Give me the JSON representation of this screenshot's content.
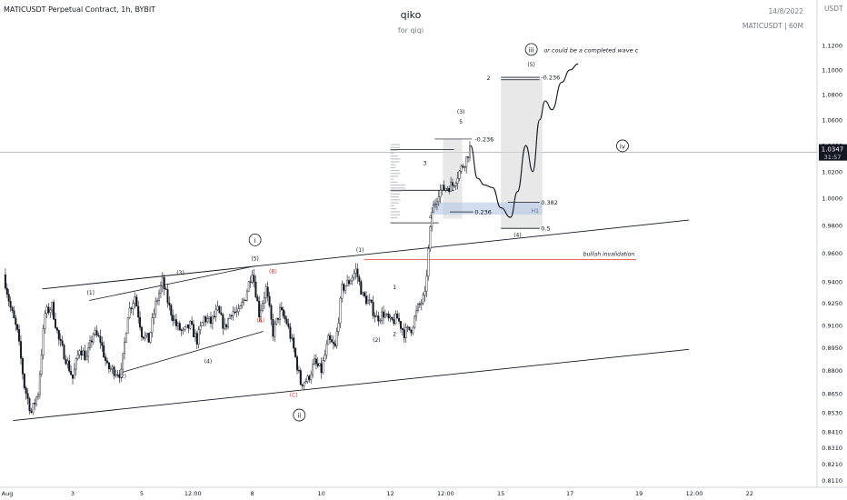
{
  "header": {
    "symbol_title": "MATICUSDT Perpetual Contract, 1h, BYBIT",
    "author": "qiko",
    "subtitle": "for qiqi",
    "date": "14/8/2022",
    "symbol_interval": "MATICUSDT | 60M",
    "currency": "USDT"
  },
  "price_tag": {
    "price": "1.0347",
    "countdown": "31:57"
  },
  "chart_data": {
    "type": "line",
    "title": "",
    "ylabel": "USDT",
    "ylim": [
      0.807,
      1.14
    ],
    "y_scale": "log",
    "grid": false,
    "y_ticks": [
      "1.1200",
      "1.1000",
      "1.0800",
      "1.0600",
      "1.0400",
      "1.0200",
      "1.0000",
      "0.9800",
      "0.9600",
      "0.9400",
      "0.9250",
      "0.9100",
      "0.8950",
      "0.8800",
      "0.8650",
      "0.8530",
      "0.8410",
      "0.8310",
      "0.8210",
      "0.8110"
    ],
    "y_tick_values": [
      1.12,
      1.1,
      1.08,
      1.06,
      1.04,
      1.02,
      1.0,
      0.98,
      0.96,
      0.94,
      0.925,
      0.91,
      0.895,
      0.88,
      0.865,
      0.853,
      0.841,
      0.831,
      0.821,
      0.811
    ],
    "x_ticks": [
      "Aug",
      "3",
      "5",
      "12:00",
      "8",
      "10",
      "12",
      "12:00",
      "15",
      "17",
      "19",
      "12:00",
      "22"
    ],
    "x_tick_index": [
      0,
      5,
      10,
      13.7,
      18,
      23,
      28,
      32,
      36,
      41,
      46,
      50,
      54
    ],
    "series": [
      {
        "x": [
          0,
          0.5,
          1,
          1.5,
          2,
          2.5,
          3,
          3.5,
          4,
          4.5,
          5,
          5.5,
          6,
          6.5,
          7,
          7.5,
          8,
          8.5,
          9,
          9.5,
          10,
          10.5,
          11,
          11.5,
          12,
          12.5,
          13,
          13.5,
          14,
          14.5,
          15,
          15.5,
          16,
          16.5,
          17,
          17.5,
          18,
          18.5,
          19,
          19.5,
          20,
          20.5,
          21,
          21.5,
          22,
          22.5,
          23,
          23.5,
          24,
          24.5,
          25,
          25.5,
          26,
          26.5,
          27,
          27.5,
          28,
          28.5,
          29,
          29.5,
          30,
          30.5,
          30.8,
          31,
          31.5,
          32,
          32.5,
          33,
          33.5,
          33.8
        ],
        "values": [
          0.945,
          0.922,
          0.905,
          0.87,
          0.853,
          0.866,
          0.918,
          0.923,
          0.9,
          0.888,
          0.875,
          0.895,
          0.888,
          0.905,
          0.9,
          0.882,
          0.88,
          0.878,
          0.918,
          0.93,
          0.905,
          0.9,
          0.924,
          0.94,
          0.922,
          0.91,
          0.905,
          0.91,
          0.9,
          0.915,
          0.912,
          0.92,
          0.908,
          0.92,
          0.918,
          0.93,
          0.948,
          0.918,
          0.935,
          0.905,
          0.92,
          0.912,
          0.894,
          0.872,
          0.874,
          0.885,
          0.88,
          0.9,
          0.895,
          0.935,
          0.94,
          0.948,
          0.93,
          0.925,
          0.915,
          0.918,
          0.912,
          0.915,
          0.905,
          0.908,
          0.922,
          0.93,
          0.968,
          0.99,
          1.005,
          1.008,
          1.01,
          1.02,
          1.03,
          1.04
        ]
      }
    ],
    "projection": {
      "x": [
        33.8,
        34.3,
        34.8,
        35.4,
        36.0,
        36.7,
        37.2,
        37.8,
        38.3,
        38.8,
        39.2,
        39.7,
        40.4,
        41.0,
        41.6
      ],
      "values": [
        1.04,
        1.015,
        1.01,
        1.008,
        0.993,
        0.986,
        1.005,
        1.04,
        1.02,
        1.06,
        1.075,
        1.068,
        1.09,
        1.1,
        1.105
      ]
    },
    "annotations": [
      {
        "label": "i",
        "x": 18.2,
        "y": 0.968
      },
      {
        "label": "ii",
        "x": 21.4,
        "y": 0.85
      },
      {
        "label": "iii",
        "x": 38.2,
        "y": 1.115
      },
      {
        "label": "iv",
        "x": 44.8,
        "y": 1.038
      },
      {
        "label": "(1)",
        "x": 6.3,
        "y": 0.931
      },
      {
        "label": "(2)",
        "x": 8.6,
        "y": 0.875
      },
      {
        "label": "(3)",
        "x": 12.8,
        "y": 0.945
      },
      {
        "label": "(4)",
        "x": 14.8,
        "y": 0.885
      },
      {
        "label": "(5)",
        "x": 18.2,
        "y": 0.955
      },
      {
        "label": "(A)",
        "x": 18.6,
        "y": 0.912
      },
      {
        "label": "(B)",
        "x": 19.5,
        "y": 0.946
      },
      {
        "label": "(C)",
        "x": 21.0,
        "y": 0.863
      },
      {
        "label": "(1)",
        "x": 25.8,
        "y": 0.961
      },
      {
        "label": "(2)",
        "x": 27.0,
        "y": 0.899
      },
      {
        "label": "1",
        "x": 28.3,
        "y": 0.935
      },
      {
        "label": "2",
        "x": 28.3,
        "y": 0.903
      },
      {
        "label": "3",
        "x": 30.5,
        "y": 1.025
      },
      {
        "label": "4",
        "x": 30.9,
        "y": 0.985
      },
      {
        "label": "(3)",
        "x": 33.1,
        "y": 1.065
      },
      {
        "label": "5",
        "x": 33.1,
        "y": 1.057
      },
      {
        "label": "(5)",
        "x": 38.2,
        "y": 1.103
      },
      {
        "label": "2",
        "x": 35.1,
        "y": 1.092
      },
      {
        "label": "(4)",
        "x": 37.2,
        "y": 0.972
      }
    ],
    "fib_labels": [
      {
        "label": "-0.236",
        "x": 34.1,
        "y": 1.045
      },
      {
        "label": "0.236",
        "x": 34.1,
        "y": 0.99
      },
      {
        "label": "-0.236",
        "x": 38.9,
        "y": 1.094
      },
      {
        "label": "0.382",
        "x": 38.9,
        "y": 0.997
      },
      {
        "label": "0.5",
        "x": 38.9,
        "y": 0.978
      }
    ],
    "side_note": {
      "label": "or could be a completed wave c",
      "x": 39.1,
      "y": 1.115
    },
    "h1_label": {
      "label": "H1",
      "x": 38.2,
      "y": 0.991
    },
    "invalidation": {
      "label": "bullish invalidation",
      "value": 0.9555,
      "x_from": 26.1,
      "x_to": 45.8
    },
    "current_price_line": {
      "value": 1.0347
    }
  }
}
